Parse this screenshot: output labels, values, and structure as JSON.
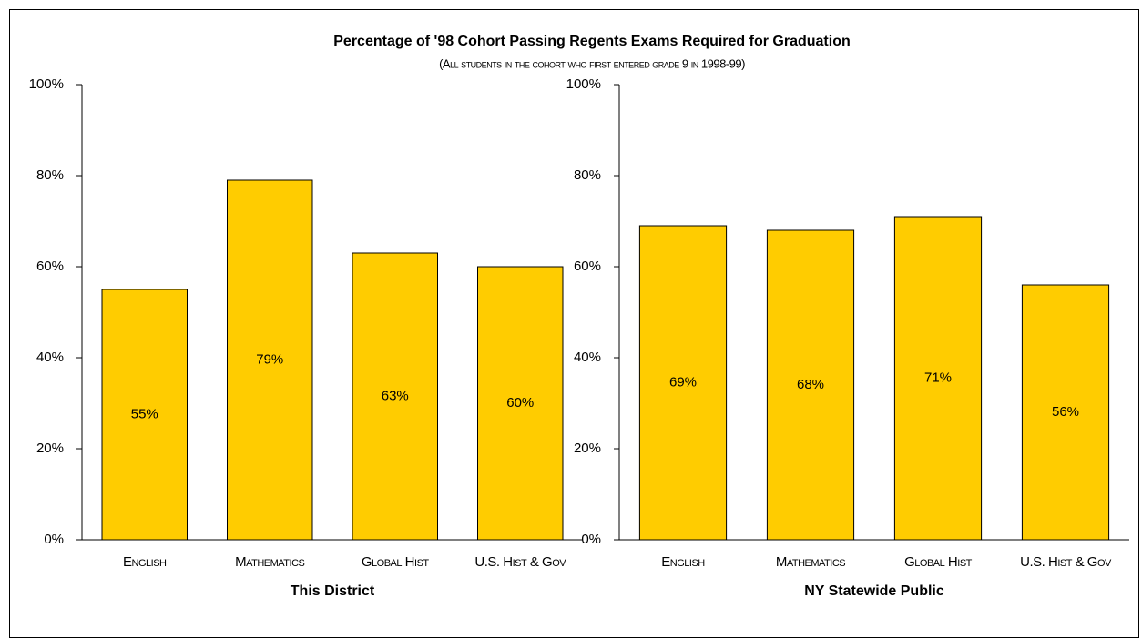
{
  "chart_data": [
    {
      "type": "bar",
      "title": "Percentage of '98 Cohort Passing Regents Exams Required for Graduation",
      "subtitle": "(All students in the cohort who first entered grade 9 in 1998-99)",
      "xlabel": "This District",
      "categories": [
        "English",
        "Mathematics",
        "Global Hist",
        "U.S. Hist & Gov"
      ],
      "values": [
        55,
        79,
        63,
        60
      ],
      "value_labels": [
        "55%",
        "79%",
        "63%",
        "60%"
      ],
      "color": "#ffcc00",
      "ylim": [
        0,
        100
      ],
      "yticks": [
        {
          "value": 0,
          "label": "0%"
        },
        {
          "value": 20,
          "label": "20%"
        },
        {
          "value": 40,
          "label": "40%"
        },
        {
          "value": 60,
          "label": "60%"
        },
        {
          "value": 80,
          "label": "80%"
        },
        {
          "value": 100,
          "label": "100%"
        }
      ]
    },
    {
      "type": "bar",
      "xlabel": "NY Statewide Public",
      "categories": [
        "English",
        "Mathematics",
        "Global Hist",
        "U.S. Hist & Gov"
      ],
      "values": [
        69,
        68,
        71,
        56
      ],
      "value_labels": [
        "69%",
        "68%",
        "71%",
        "56%"
      ],
      "color": "#ffcc00",
      "ylim": [
        0,
        100
      ],
      "yticks": [
        {
          "value": 0,
          "label": "0%"
        },
        {
          "value": 20,
          "label": "20%"
        },
        {
          "value": 40,
          "label": "40%"
        },
        {
          "value": 60,
          "label": "60%"
        },
        {
          "value": 80,
          "label": "80%"
        },
        {
          "value": 100,
          "label": "100%"
        }
      ]
    }
  ]
}
